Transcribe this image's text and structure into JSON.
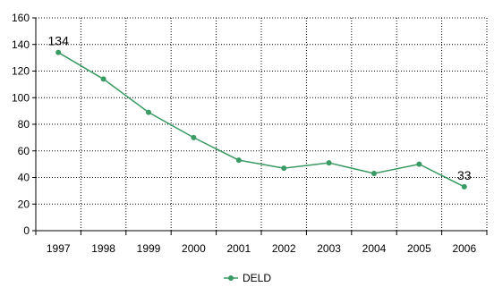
{
  "chart_data": {
    "type": "line",
    "title": "",
    "xlabel": "",
    "ylabel": "",
    "categories": [
      "1997",
      "1998",
      "1999",
      "2000",
      "2001",
      "2002",
      "2003",
      "2004",
      "2005",
      "2006"
    ],
    "series": [
      {
        "name": "DELD",
        "color": "#3a9a63",
        "values": [
          134,
          114,
          89,
          70,
          53,
          47,
          51,
          43,
          50,
          33
        ]
      }
    ],
    "data_labels": [
      {
        "index": 0,
        "text": "134"
      },
      {
        "index": 9,
        "text": "33"
      }
    ],
    "ylim": [
      0,
      160
    ],
    "yticks": [
      0,
      20,
      40,
      60,
      80,
      100,
      120,
      140,
      160
    ],
    "grid": "dotted",
    "legend_position": "bottom-center"
  }
}
